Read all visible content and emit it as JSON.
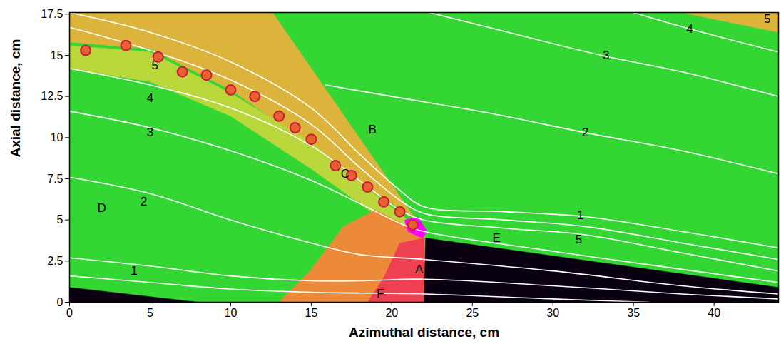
{
  "chart_data": {
    "type": "field",
    "x_label": "Azimuthal distance, cm",
    "y_label": "Axial distance, cm",
    "xlim": [
      0,
      44
    ],
    "ylim": [
      0,
      17.6
    ],
    "xticks": [
      0,
      5,
      10,
      15,
      20,
      25,
      30,
      35,
      40
    ],
    "yticks": [
      0,
      2.5,
      5,
      7.5,
      10,
      12.5,
      15,
      17.5
    ],
    "background_color": "#33d633",
    "regions": [
      {
        "color": "#dcb43c",
        "x": [
          0,
          12.6,
          21.8,
          21,
          18,
          15,
          10,
          5,
          0
        ],
        "y": [
          17.6,
          17.6,
          4.6,
          5.4,
          7.2,
          9.5,
          12.9,
          15.4,
          15.8
        ]
      },
      {
        "color": "#b9d63a",
        "x": [
          0,
          5,
          10,
          15,
          18,
          21,
          21.6,
          19,
          15,
          10,
          5,
          0
        ],
        "y": [
          15.6,
          15.2,
          12.7,
          9.7,
          7.3,
          5.0,
          4.4,
          5.3,
          8.1,
          11.3,
          13.4,
          14.2
        ]
      },
      {
        "color": "#ec8a3a",
        "x": [
          13,
          22,
          22,
          21,
          19,
          17,
          15
        ],
        "y": [
          0,
          0,
          4.0,
          4.6,
          5.6,
          4.6,
          2.0
        ]
      },
      {
        "color": "#ee4050",
        "x": [
          18.5,
          22,
          22,
          20.5,
          19.5
        ],
        "y": [
          0,
          0,
          3.9,
          3.6,
          1.5
        ]
      },
      {
        "color": "#ff00ff",
        "x": [
          21.0,
          21.9,
          22.2,
          21.6,
          20.8
        ],
        "y": [
          4.3,
          3.9,
          4.3,
          5.2,
          5.0
        ]
      },
      {
        "color": "#0a0012",
        "x": [
          22,
          22.1,
          44,
          44
        ],
        "y": [
          0,
          3.9,
          0.9,
          0
        ]
      },
      {
        "color": "#0a0012",
        "x": [
          0,
          0,
          8
        ],
        "y": [
          0,
          0.9,
          0
        ]
      },
      {
        "color": "#dcb43c",
        "x": [
          38,
          44,
          44
        ],
        "y": [
          17.6,
          17.6,
          16.4
        ]
      }
    ],
    "slip_line_vortices": {
      "color": "#e8602e",
      "x": [
        1,
        3.5,
        5.5,
        7,
        8.5,
        10,
        11.5,
        13,
        14,
        15,
        16.5,
        17.5,
        18.5,
        19.5,
        20.5,
        21.3
      ],
      "y": [
        15.3,
        15.6,
        14.9,
        14.0,
        13.8,
        12.9,
        12.5,
        11.3,
        10.6,
        9.9,
        8.3,
        7.7,
        7.0,
        6.1,
        5.5,
        4.7
      ]
    },
    "streamlines": {
      "color": "#ffffff",
      "lines": [
        {
          "x": [
            0,
            5,
            10,
            15,
            18,
            20.5,
            22,
            27,
            32,
            38,
            44
          ],
          "y": [
            17.6,
            16.4,
            14.6,
            11.8,
            9,
            6.8,
            5.8,
            5.5,
            5.2,
            4.3,
            3.3
          ]
        },
        {
          "x": [
            0,
            5,
            10,
            15,
            18,
            20.5,
            22,
            27,
            32,
            38,
            44
          ],
          "y": [
            16.7,
            15.3,
            13.5,
            10.8,
            8.2,
            6.2,
            5.4,
            5.0,
            4.6,
            3.6,
            2.6
          ]
        },
        {
          "x": [
            0,
            5,
            10,
            15,
            18,
            20.5,
            22,
            27,
            32,
            38,
            44
          ],
          "y": [
            14.2,
            13.2,
            11.8,
            9.5,
            7.4,
            5.6,
            5.0,
            4.5,
            4.1,
            3.0,
            1.9
          ]
        },
        {
          "x": [
            0,
            5,
            10,
            15,
            18,
            20.5,
            22,
            30,
            38,
            44
          ],
          "y": [
            11.6,
            10.6,
            9.2,
            7.4,
            6.0,
            4.8,
            4.3,
            3.1,
            2.0,
            1.2
          ]
        },
        {
          "x": [
            0,
            5,
            10,
            15,
            18,
            22,
            30,
            38,
            44
          ],
          "y": [
            7.6,
            6.6,
            5.0,
            3.6,
            2.9,
            2.6,
            1.9,
            1.0,
            0.5
          ]
        },
        {
          "x": [
            0,
            5,
            10,
            15,
            18,
            22,
            30,
            38,
            44
          ],
          "y": [
            2.7,
            2.2,
            1.6,
            1.3,
            1.3,
            1.4,
            1.0,
            0.5,
            0.2
          ]
        },
        {
          "x": [
            0,
            5,
            10,
            15,
            22,
            30,
            36
          ],
          "y": [
            1.6,
            1.2,
            0.8,
            0.6,
            0.5,
            0.2,
            0
          ]
        },
        {
          "x": [
            15.9,
            20,
            26,
            32,
            38,
            44
          ],
          "y": [
            13.2,
            12.5,
            11.5,
            10.3,
            9.2,
            7.8
          ]
        },
        {
          "x": [
            22.3,
            26,
            33,
            38,
            44
          ],
          "y": [
            17.6,
            16.7,
            15.0,
            14.0,
            12.5
          ]
        },
        {
          "x": [
            35,
            38.5,
            44
          ],
          "y": [
            17.6,
            16.6,
            15.2
          ]
        }
      ]
    },
    "annotations": [
      {
        "text": "A",
        "x": 21.7,
        "y": 2.0
      },
      {
        "text": "B",
        "x": 18.8,
        "y": 10.5
      },
      {
        "text": "C",
        "x": 17.1,
        "y": 7.8
      },
      {
        "text": "D",
        "x": 2.0,
        "y": 5.7
      },
      {
        "text": "E",
        "x": 26.5,
        "y": 3.9
      },
      {
        "text": "F",
        "x": 19.3,
        "y": 0.5
      },
      {
        "text": "5",
        "x": 5.3,
        "y": 14.4
      },
      {
        "text": "4",
        "x": 5.0,
        "y": 12.4
      },
      {
        "text": "3",
        "x": 5.0,
        "y": 10.3
      },
      {
        "text": "2",
        "x": 4.6,
        "y": 6.1
      },
      {
        "text": "1",
        "x": 4.0,
        "y": 1.9
      },
      {
        "text": "2",
        "x": 32.0,
        "y": 10.3
      },
      {
        "text": "3",
        "x": 33.3,
        "y": 15.0
      },
      {
        "text": "4",
        "x": 38.5,
        "y": 16.6
      },
      {
        "text": "5",
        "x": 43.3,
        "y": 17.2
      },
      {
        "text": "1",
        "x": 31.7,
        "y": 5.3
      },
      {
        "text": "5",
        "x": 31.6,
        "y": 3.8
      }
    ]
  }
}
